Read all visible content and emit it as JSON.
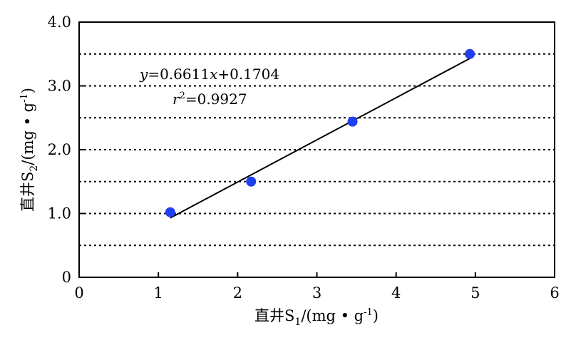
{
  "chart_data": {
    "type": "scatter",
    "xlabel": {
      "main": "直井S",
      "sub": "1",
      "tail": "/(mg • g",
      "sup": "-1",
      "close": ")"
    },
    "ylabel": {
      "main": "直井S",
      "sub": "2",
      "tail": "/(mg • g",
      "sup": "-1",
      "close": ")"
    },
    "xlim": [
      0,
      6
    ],
    "ylim": [
      0,
      4.0
    ],
    "x_ticks": [
      "0",
      "1",
      "2",
      "3",
      "4",
      "5",
      "6"
    ],
    "y_ticks": [
      "0",
      "1.0",
      "2.0",
      "3.0",
      "4.0"
    ],
    "grid": "horizontal dotted",
    "grid_y": [
      0.5,
      1.0,
      1.5,
      2.0,
      2.5,
      3.0,
      3.5
    ],
    "points": [
      {
        "x": 1.15,
        "y": 1.02
      },
      {
        "x": 2.17,
        "y": 1.5
      },
      {
        "x": 3.45,
        "y": 2.44
      },
      {
        "x": 4.93,
        "y": 3.5
      }
    ],
    "fit": {
      "slope": 0.6611,
      "intercept": 0.1704,
      "x_range": [
        1.15,
        4.93
      ]
    },
    "equation": {
      "y_var": "y",
      "eq1": "=0.6611",
      "x_var": "x",
      "eq2": "+0.1704"
    },
    "r2": {
      "var": "r",
      "sup": "2",
      "value": "=0.9927"
    },
    "colors": {
      "point": "#1f3ff0",
      "line": "#000000",
      "grid": "#000000"
    }
  }
}
